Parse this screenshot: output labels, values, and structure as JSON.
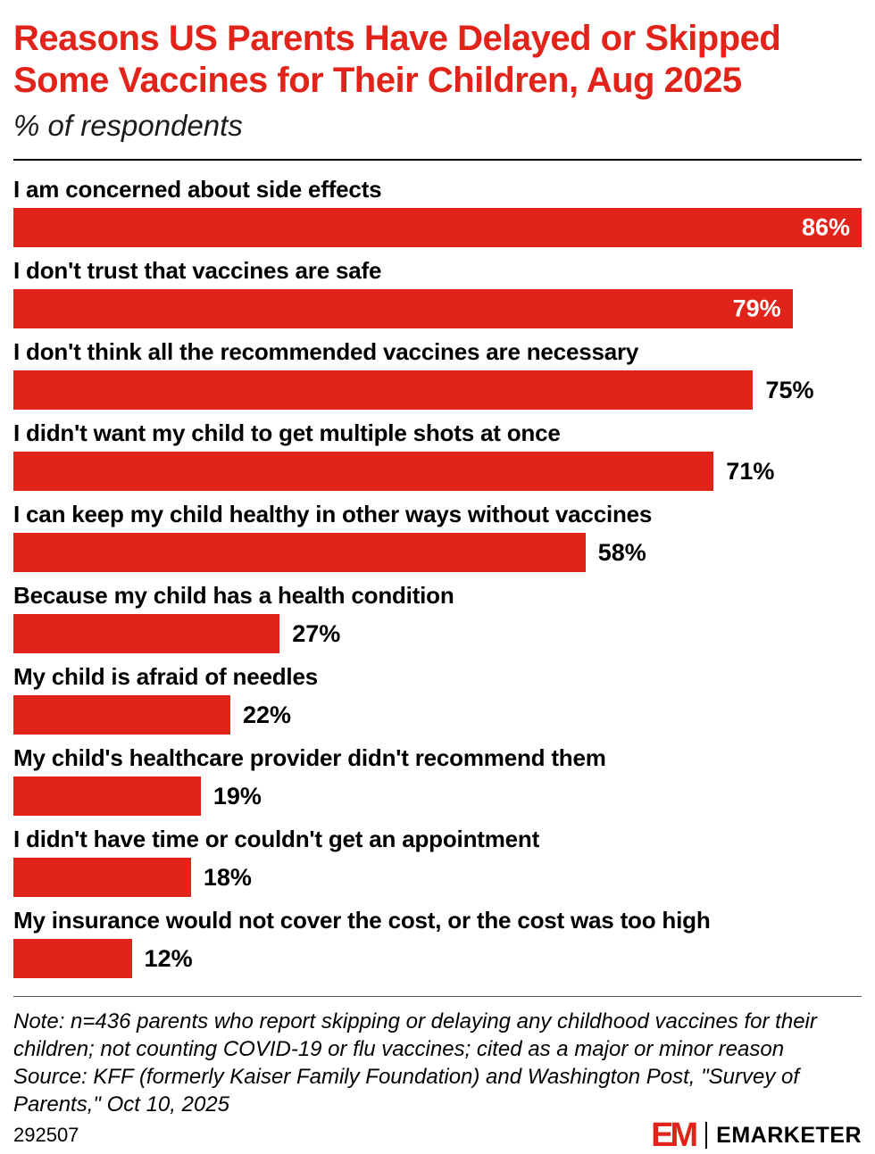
{
  "chart_data": {
    "type": "bar",
    "orientation": "horizontal",
    "title": "Reasons US Parents Have Delayed or Skipped Some Vaccines for Their Children, Aug 2025",
    "subtitle": "% of respondents",
    "categories": [
      "I am concerned about side effects",
      "I don't trust that vaccines are safe",
      "I don't think all the recommended vaccines are necessary",
      "I didn't want my child to get multiple shots at once",
      "I can keep my child healthy in other ways without vaccines",
      "Because my child has a health condition",
      "My child is afraid of needles",
      "My child's healthcare provider didn't recommend them",
      "I didn't have time or couldn't get an appointment",
      "My insurance would not cover the cost, or the cost was too high"
    ],
    "values": [
      86,
      79,
      75,
      71,
      58,
      27,
      22,
      19,
      18,
      12
    ],
    "value_labels": [
      "86%",
      "79%",
      "75%",
      "71%",
      "58%",
      "27%",
      "22%",
      "19%",
      "18%",
      "12%"
    ],
    "value_suffix": "%",
    "xlim": [
      0,
      86
    ],
    "bar_color": "#e2231a",
    "grid": false,
    "legend": false
  },
  "note": {
    "note_text": "Note: n=436 parents who report skipping or delaying any childhood vaccines for their children; not counting COVID-19 or flu vaccines; cited as a major or minor reason",
    "source_text": "Source: KFF (formerly Kaiser Family Foundation) and Washington Post, \"Survey of Parents,\" Oct 10, 2025"
  },
  "footer": {
    "chart_id": "292507",
    "logo_mark": "EM",
    "brand_name": "EMARKETER"
  },
  "colors": {
    "accent_red": "#e2231a",
    "text": "#000000",
    "background": "#ffffff"
  }
}
